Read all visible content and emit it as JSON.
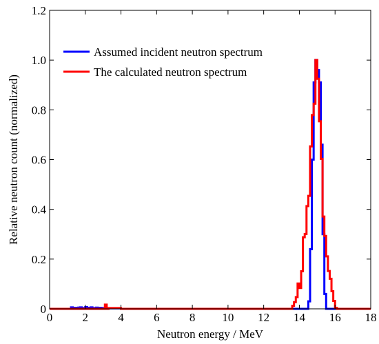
{
  "chart_data": {
    "type": "line",
    "title": "",
    "xlabel": "Neutron energy / MeV",
    "ylabel": "Relative neutron count (normalized)",
    "xlim": [
      0,
      18
    ],
    "ylim": [
      0,
      1.2
    ],
    "xticks": [
      0,
      2,
      4,
      6,
      8,
      10,
      12,
      14,
      16,
      18
    ],
    "yticks": [
      0,
      0.2,
      0.4,
      0.6,
      0.8,
      1.0,
      1.2
    ],
    "xtick_labels": [
      "0",
      "2",
      "4",
      "6",
      "8",
      "10",
      "12",
      "14",
      "16",
      "18"
    ],
    "ytick_labels": [
      "0",
      "0.2",
      "0.4",
      "0.6",
      "0.8",
      "1.0",
      "1.2"
    ],
    "grid": false,
    "legend_position": "top-left",
    "series": [
      {
        "name": "Assumed incident neutron spectrum",
        "color": "#0000ff",
        "step": true,
        "x": [
          1.1,
          1.2,
          1.3,
          1.4,
          1.5,
          1.6,
          1.7,
          1.8,
          1.9,
          2.0,
          2.1,
          2.2,
          2.3,
          2.4,
          2.5,
          2.6,
          2.7,
          2.8,
          2.9,
          3.0,
          3.2,
          4.0,
          14.5,
          14.6,
          14.7,
          14.8,
          14.9,
          15.0,
          15.1,
          15.2,
          15.3,
          15.4,
          15.5
        ],
        "y": [
          0.0,
          0.006,
          0.0,
          0.004,
          0.0,
          0.005,
          0.006,
          0.0,
          0.003,
          0.007,
          0.0,
          0.004,
          0.006,
          0.0,
          0.003,
          0.005,
          0.0,
          0.004,
          0.0,
          0.003,
          0.002,
          0.0,
          0.03,
          0.24,
          0.6,
          0.91,
          1.0,
          0.96,
          0.91,
          0.66,
          0.3,
          0.06,
          0.0
        ]
      },
      {
        "name": "The calculated neutron spectrum",
        "color": "#ff0000",
        "step": true,
        "x": [
          1.2,
          3.0,
          3.1,
          3.2,
          3.3,
          4.0,
          13.6,
          13.7,
          13.8,
          13.9,
          14.0,
          14.1,
          14.2,
          14.3,
          14.4,
          14.5,
          14.6,
          14.7,
          14.8,
          14.9,
          15.0,
          15.1,
          15.2,
          15.3,
          15.4,
          15.5,
          15.6,
          15.7,
          15.8,
          15.9,
          16.0,
          16.1
        ],
        "y": [
          0.0,
          0.0,
          0.017,
          0.0,
          0.003,
          0.0,
          0.012,
          0.027,
          0.047,
          0.102,
          0.084,
          0.151,
          0.288,
          0.301,
          0.413,
          0.454,
          0.653,
          0.779,
          0.825,
          1.0,
          0.925,
          0.754,
          0.603,
          0.371,
          0.293,
          0.211,
          0.152,
          0.121,
          0.071,
          0.032,
          0.004,
          0.0
        ]
      }
    ]
  }
}
